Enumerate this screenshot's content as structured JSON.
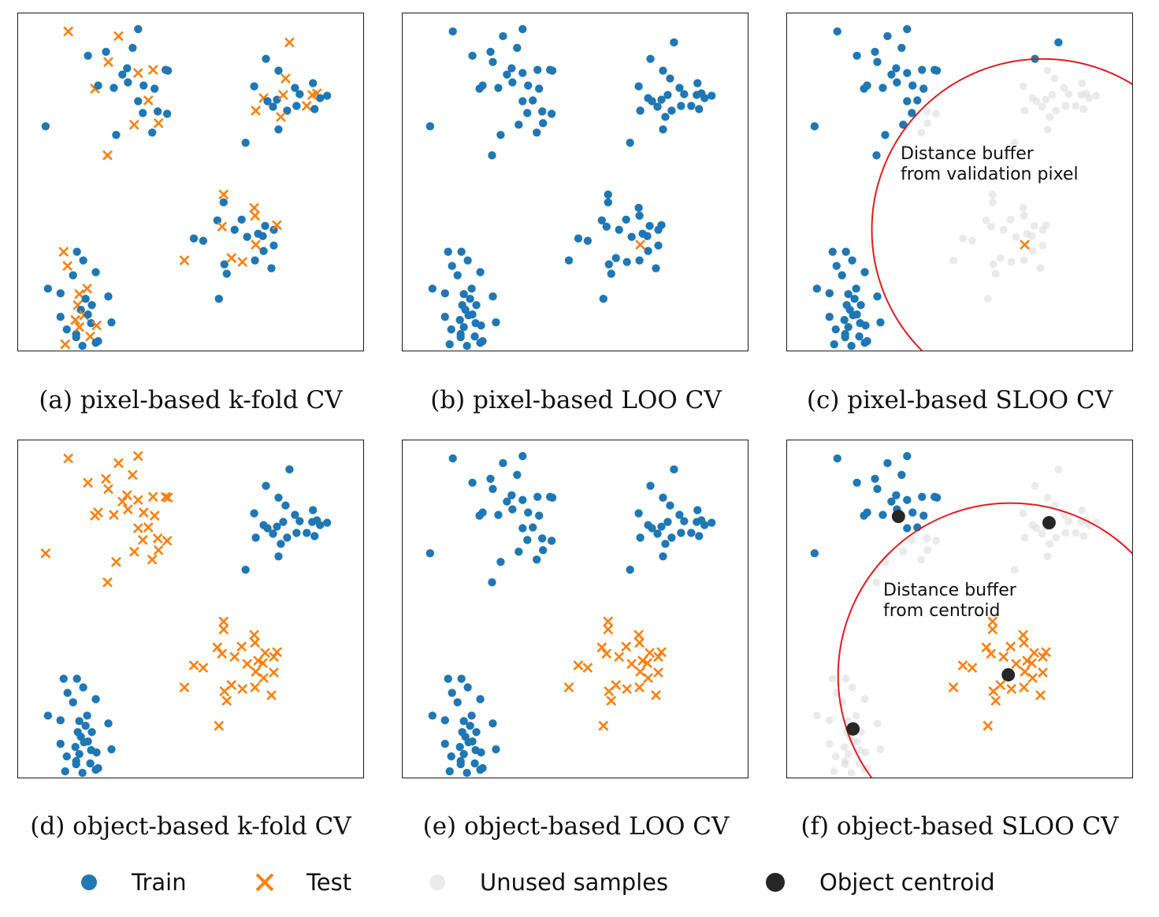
{
  "colors": {
    "train": "#1f77b4",
    "test": "#ff7f0e",
    "unused": "#e0e0e0",
    "centroid": "#262626",
    "buffer": "#e41a1c"
  },
  "panels": [
    {
      "id": "a",
      "caption": "(a) pixel-based k-fold CV"
    },
    {
      "id": "b",
      "caption": "(b) pixel-based LOO CV"
    },
    {
      "id": "c",
      "caption": "(c) pixel-based SLOO CV",
      "annotation_line1": "Distance buffer",
      "annotation_line2": "from validation pixel"
    },
    {
      "id": "d",
      "caption": "(d) object-based k-fold CV"
    },
    {
      "id": "e",
      "caption": "(e) object-based LOO CV"
    },
    {
      "id": "f",
      "caption": "(f) object-based SLOO CV",
      "annotation_line1": "Distance buffer",
      "annotation_line2": "from centroid"
    }
  ],
  "legend": {
    "train": {
      "label": "Train",
      "icon": "blue-dot-icon"
    },
    "test": {
      "label": "Test",
      "icon": "orange-x-icon"
    },
    "unused": {
      "label": "Unused samples",
      "icon": "light-gray-dot-icon"
    },
    "centroid": {
      "label": "Object centroid",
      "icon": "black-dot-icon"
    }
  }
}
